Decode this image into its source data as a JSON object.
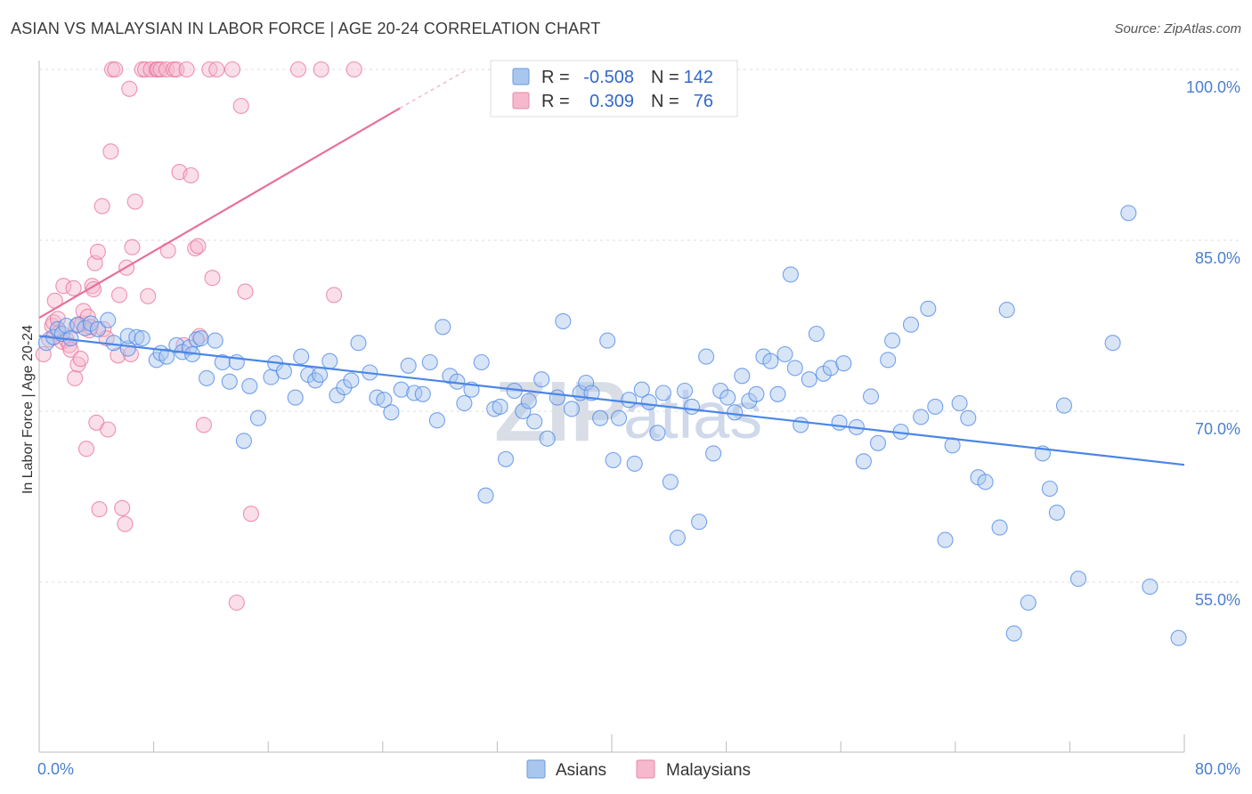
{
  "header": {
    "title": "ASIAN VS MALAYSIAN IN LABOR FORCE | AGE 20-24 CORRELATION CHART",
    "source": "Source: ZipAtlas.com"
  },
  "watermark": {
    "part1": "ZIP",
    "part2": "atlas"
  },
  "legend": {
    "rows": [
      {
        "r_label": "R =",
        "r_value": "-0.508",
        "n_label": "N =",
        "n_value": "142",
        "color": "#a9c6ee"
      },
      {
        "r_label": "R =",
        "r_value": "0.309",
        "n_label": "N =",
        "n_value": "76",
        "color": "#f6b8cc"
      }
    ]
  },
  "bottom_legend": [
    {
      "label": "Asians",
      "color": "#a9c6ee"
    },
    {
      "label": "Malaysians",
      "color": "#f6b8cc"
    }
  ],
  "chart_data": {
    "type": "scatter",
    "title": "ASIAN VS MALAYSIAN IN LABOR FORCE | AGE 20-24 CORRELATION CHART",
    "xlabel": "",
    "ylabel": "In Labor Force | Age 20-24",
    "xlim": [
      0,
      80
    ],
    "ylim": [
      40,
      101.5
    ],
    "x_tick_labels": [
      "0.0%",
      "80.0%"
    ],
    "y_ticks": [
      55,
      70,
      85,
      100
    ],
    "y_tick_labels": [
      "55.0%",
      "70.0%",
      "85.0%",
      "100.0%"
    ],
    "grid": true,
    "legend_position": "top-center",
    "series": [
      {
        "name": "Asians",
        "color": "#4a86e8",
        "fill": "#a9c6ee",
        "trend": {
          "x": [
            0,
            80
          ],
          "y": [
            76.6,
            65.3
          ]
        },
        "points": [
          [
            0.5,
            76.0
          ],
          [
            1.0,
            76.5
          ],
          [
            1.3,
            77.2
          ],
          [
            1.6,
            76.8
          ],
          [
            1.9,
            77.5
          ],
          [
            2.2,
            76.4
          ],
          [
            2.7,
            77.6
          ],
          [
            3.2,
            77.3
          ],
          [
            3.6,
            77.7
          ],
          [
            4.1,
            77.2
          ],
          [
            4.8,
            78.0
          ],
          [
            5.2,
            76.0
          ],
          [
            6.2,
            75.5
          ],
          [
            6.2,
            76.6
          ],
          [
            6.8,
            76.5
          ],
          [
            7.2,
            76.4
          ],
          [
            8.2,
            74.5
          ],
          [
            8.5,
            75.1
          ],
          [
            8.9,
            74.8
          ],
          [
            9.6,
            75.8
          ],
          [
            10.0,
            75.2
          ],
          [
            10.5,
            75.6
          ],
          [
            10.7,
            75.0
          ],
          [
            11.0,
            76.3
          ],
          [
            11.3,
            76.4
          ],
          [
            11.7,
            72.9
          ],
          [
            12.3,
            76.2
          ],
          [
            12.8,
            74.3
          ],
          [
            13.3,
            72.6
          ],
          [
            13.8,
            74.3
          ],
          [
            14.3,
            67.4
          ],
          [
            14.7,
            72.2
          ],
          [
            15.3,
            69.4
          ],
          [
            16.2,
            73.0
          ],
          [
            16.5,
            74.2
          ],
          [
            17.1,
            73.5
          ],
          [
            17.9,
            71.2
          ],
          [
            18.3,
            74.8
          ],
          [
            18.8,
            73.2
          ],
          [
            19.3,
            72.7
          ],
          [
            19.6,
            73.2
          ],
          [
            20.3,
            74.4
          ],
          [
            20.8,
            71.4
          ],
          [
            21.3,
            72.1
          ],
          [
            21.8,
            72.7
          ],
          [
            22.3,
            76.0
          ],
          [
            23.1,
            73.4
          ],
          [
            23.6,
            71.2
          ],
          [
            24.1,
            71.0
          ],
          [
            24.6,
            69.9
          ],
          [
            25.3,
            71.9
          ],
          [
            25.8,
            74.0
          ],
          [
            26.2,
            71.6
          ],
          [
            26.8,
            71.5
          ],
          [
            27.3,
            74.3
          ],
          [
            27.8,
            69.2
          ],
          [
            28.2,
            77.4
          ],
          [
            28.7,
            73.1
          ],
          [
            29.2,
            72.6
          ],
          [
            29.7,
            70.7
          ],
          [
            30.2,
            71.9
          ],
          [
            30.9,
            74.3
          ],
          [
            31.2,
            62.6
          ],
          [
            31.8,
            70.2
          ],
          [
            32.2,
            70.4
          ],
          [
            32.6,
            65.8
          ],
          [
            33.2,
            71.8
          ],
          [
            33.8,
            70.0
          ],
          [
            34.2,
            70.9
          ],
          [
            34.6,
            69.1
          ],
          [
            35.1,
            72.8
          ],
          [
            35.5,
            67.6
          ],
          [
            36.2,
            71.2
          ],
          [
            36.6,
            77.9
          ],
          [
            37.2,
            70.2
          ],
          [
            37.8,
            71.6
          ],
          [
            38.2,
            72.5
          ],
          [
            38.6,
            71.6
          ],
          [
            39.2,
            69.4
          ],
          [
            39.7,
            76.2
          ],
          [
            40.1,
            65.7
          ],
          [
            40.5,
            69.4
          ],
          [
            41.2,
            71.0
          ],
          [
            41.6,
            65.4
          ],
          [
            42.1,
            71.9
          ],
          [
            42.6,
            70.8
          ],
          [
            43.2,
            68.1
          ],
          [
            43.6,
            71.6
          ],
          [
            44.1,
            63.8
          ],
          [
            44.6,
            58.9
          ],
          [
            45.1,
            71.8
          ],
          [
            45.6,
            70.4
          ],
          [
            46.1,
            60.3
          ],
          [
            46.6,
            74.8
          ],
          [
            47.1,
            66.3
          ],
          [
            47.6,
            71.8
          ],
          [
            48.1,
            71.2
          ],
          [
            48.6,
            69.9
          ],
          [
            49.1,
            73.1
          ],
          [
            49.6,
            70.9
          ],
          [
            50.1,
            71.5
          ],
          [
            50.6,
            74.8
          ],
          [
            51.1,
            74.4
          ],
          [
            51.6,
            71.5
          ],
          [
            52.1,
            75.0
          ],
          [
            52.5,
            82.0
          ],
          [
            52.8,
            73.8
          ],
          [
            53.2,
            68.8
          ],
          [
            53.8,
            72.8
          ],
          [
            54.3,
            76.8
          ],
          [
            54.8,
            73.3
          ],
          [
            55.3,
            73.8
          ],
          [
            55.9,
            69.0
          ],
          [
            56.2,
            74.2
          ],
          [
            57.1,
            68.6
          ],
          [
            57.6,
            65.6
          ],
          [
            58.1,
            71.3
          ],
          [
            58.6,
            67.2
          ],
          [
            59.3,
            74.5
          ],
          [
            59.6,
            76.2
          ],
          [
            60.2,
            68.2
          ],
          [
            60.9,
            77.6
          ],
          [
            61.6,
            69.5
          ],
          [
            62.1,
            79.0
          ],
          [
            62.6,
            70.4
          ],
          [
            63.3,
            58.7
          ],
          [
            63.8,
            67.0
          ],
          [
            64.3,
            70.7
          ],
          [
            64.9,
            69.4
          ],
          [
            65.6,
            64.2
          ],
          [
            66.1,
            63.8
          ],
          [
            67.1,
            59.8
          ],
          [
            67.6,
            78.9
          ],
          [
            68.1,
            50.5
          ],
          [
            69.1,
            53.2
          ],
          [
            70.1,
            66.3
          ],
          [
            70.6,
            63.2
          ],
          [
            71.1,
            61.1
          ],
          [
            71.6,
            70.5
          ],
          [
            72.6,
            55.3
          ],
          [
            75.0,
            76.0
          ],
          [
            76.1,
            87.4
          ],
          [
            77.6,
            54.6
          ],
          [
            79.6,
            50.1
          ]
        ]
      },
      {
        "name": "Malaysians",
        "color": "#e8709a",
        "fill": "#f6b8cc",
        "trend": {
          "x": [
            0,
            25.2
          ],
          "y": [
            78.2,
            96.6
          ]
        },
        "trend_dashed": {
          "x": [
            25.2,
            29.8
          ],
          "y": [
            96.6,
            99.9
          ]
        },
        "points": [
          [
            0.3,
            75.0
          ],
          [
            0.7,
            76.3
          ],
          [
            0.9,
            77.5
          ],
          [
            1.0,
            77.8
          ],
          [
            1.1,
            79.7
          ],
          [
            1.3,
            78.1
          ],
          [
            1.4,
            76.9
          ],
          [
            1.6,
            76.1
          ],
          [
            1.7,
            81.0
          ],
          [
            1.9,
            76.3
          ],
          [
            2.1,
            75.8
          ],
          [
            2.2,
            75.4
          ],
          [
            2.4,
            80.8
          ],
          [
            2.5,
            72.9
          ],
          [
            2.6,
            77.5
          ],
          [
            2.7,
            74.1
          ],
          [
            2.9,
            74.6
          ],
          [
            3.0,
            77.7
          ],
          [
            3.1,
            78.8
          ],
          [
            3.3,
            66.7
          ],
          [
            3.4,
            78.3
          ],
          [
            3.5,
            77.1
          ],
          [
            3.6,
            77.4
          ],
          [
            3.7,
            81.0
          ],
          [
            3.8,
            80.7
          ],
          [
            3.9,
            83.0
          ],
          [
            4.0,
            69.0
          ],
          [
            4.1,
            84.0
          ],
          [
            4.2,
            61.4
          ],
          [
            4.4,
            88.0
          ],
          [
            4.5,
            77.2
          ],
          [
            4.7,
            76.4
          ],
          [
            4.8,
            68.4
          ],
          [
            5.0,
            92.8
          ],
          [
            5.1,
            100.0
          ],
          [
            5.3,
            100.0
          ],
          [
            5.5,
            74.9
          ],
          [
            5.6,
            80.2
          ],
          [
            5.8,
            61.5
          ],
          [
            6.0,
            60.1
          ],
          [
            6.1,
            82.6
          ],
          [
            6.3,
            98.3
          ],
          [
            6.4,
            75.0
          ],
          [
            6.5,
            84.4
          ],
          [
            6.7,
            88.4
          ],
          [
            7.2,
            100.0
          ],
          [
            7.4,
            100.0
          ],
          [
            7.6,
            80.1
          ],
          [
            7.8,
            100.0
          ],
          [
            8.2,
            100.0
          ],
          [
            8.3,
            100.0
          ],
          [
            8.5,
            100.0
          ],
          [
            8.9,
            100.0
          ],
          [
            9.0,
            84.1
          ],
          [
            9.4,
            100.0
          ],
          [
            9.6,
            100.0
          ],
          [
            9.8,
            91.0
          ],
          [
            10.1,
            75.8
          ],
          [
            10.3,
            100.0
          ],
          [
            10.6,
            90.7
          ],
          [
            10.9,
            84.3
          ],
          [
            11.1,
            84.5
          ],
          [
            11.2,
            76.6
          ],
          [
            11.5,
            68.8
          ],
          [
            11.9,
            100.0
          ],
          [
            12.1,
            81.7
          ],
          [
            12.4,
            100.0
          ],
          [
            13.5,
            100.0
          ],
          [
            13.8,
            53.2
          ],
          [
            14.1,
            96.8
          ],
          [
            14.4,
            80.5
          ],
          [
            14.8,
            61.0
          ],
          [
            18.1,
            100.0
          ],
          [
            19.7,
            100.0
          ],
          [
            20.6,
            80.2
          ],
          [
            22.0,
            100.0
          ]
        ]
      }
    ]
  }
}
